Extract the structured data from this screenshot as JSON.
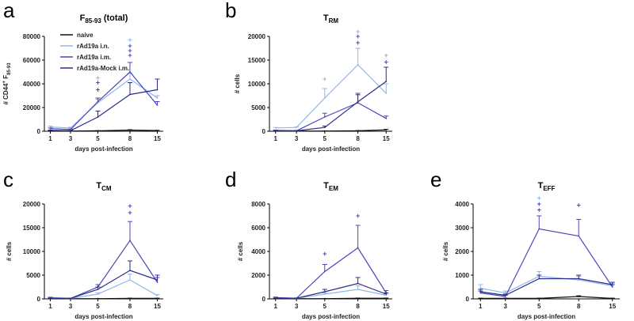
{
  "colors": {
    "naive": "#111111",
    "rAd19a i.n.": "#8fb8e6",
    "rAd19a i.m.": "#4c46b8",
    "rAd19a-Mock i.m.": "#2a2a8c"
  },
  "legend": [
    "naive",
    "rAd19a i.n.",
    "rAd19a i.m.",
    "rAd19a-Mock i.m."
  ],
  "chart_data": [
    {
      "type": "line",
      "panel": "a",
      "title": "F",
      "title_sub": "85-93",
      "title_suffix": " (total)",
      "xlabel": "days post-infection",
      "ylabel_parts": [
        "# CD44",
        "+",
        " F",
        "85-93"
      ],
      "categories": [
        "1",
        "3",
        "5",
        "8",
        "15"
      ],
      "ylim": [
        0,
        80000
      ],
      "yticks": [
        0,
        20000,
        40000,
        60000,
        80000
      ],
      "yticklabels": [
        "0",
        "20000",
        "40000",
        "60000",
        "80000"
      ],
      "series": [
        {
          "name": "naive",
          "values": [
            300,
            200,
            400,
            1000,
            600
          ],
          "err": [
            100,
            100,
            100,
            300,
            200
          ]
        },
        {
          "name": "rAd19a i.n.",
          "values": [
            3500,
            2800,
            24000,
            44000,
            28000
          ],
          "err": [
            800,
            600,
            3000,
            5000,
            2000
          ]
        },
        {
          "name": "rAd19a i.m.",
          "values": [
            2200,
            1500,
            25000,
            50000,
            22000
          ],
          "err": [
            500,
            400,
            3000,
            8000,
            3000
          ]
        },
        {
          "name": "rAd19a-Mock i.m.",
          "values": [
            800,
            500,
            12000,
            31000,
            35000
          ],
          "err": [
            200,
            200,
            5000,
            10000,
            9000
          ]
        }
      ],
      "annotations": [
        {
          "x": "5",
          "series": "rAd19a i.n.",
          "text": "+",
          "y": 45000
        },
        {
          "x": "5",
          "series": "rAd19a i.m.",
          "text": "+",
          "y": 41000
        },
        {
          "x": "5",
          "series": "rAd19a i.m.",
          "text": "+",
          "y": 35000
        },
        {
          "x": "8",
          "series": "rAd19a i.n.",
          "text": "+",
          "y": 77000
        },
        {
          "x": "8",
          "series": "rAd19a i.m.",
          "text": "+",
          "y": 72000
        },
        {
          "x": "8",
          "series": "rAd19a i.m.",
          "text": "+",
          "y": 68000
        },
        {
          "x": "8",
          "series": "rAd19a i.m.",
          "text": "+",
          "y": 64000
        }
      ]
    },
    {
      "type": "line",
      "panel": "b",
      "title": "T",
      "title_sub": "RM",
      "title_suffix": "",
      "xlabel": "days post-infection",
      "ylabel_parts": [
        "# cells",
        "",
        "",
        ""
      ],
      "categories": [
        "1",
        "3",
        "5",
        "8",
        "15"
      ],
      "ylim": [
        0,
        20000
      ],
      "yticks": [
        0,
        5000,
        10000,
        15000,
        20000
      ],
      "yticklabels": [
        "0",
        "5000",
        "10000",
        "15000",
        "20000"
      ],
      "series": [
        {
          "name": "naive",
          "values": [
            50,
            50,
            50,
            100,
            300
          ],
          "err": [
            20,
            20,
            20,
            50,
            100
          ]
        },
        {
          "name": "rAd19a i.n.",
          "values": [
            700,
            800,
            7000,
            14000,
            8000
          ],
          "err": [
            100,
            100,
            2000,
            3500,
            2000
          ]
        },
        {
          "name": "rAd19a i.m.",
          "values": [
            200,
            100,
            3000,
            6000,
            2700
          ],
          "err": [
            50,
            50,
            800,
            2000,
            500
          ]
        },
        {
          "name": "rAd19a-Mock i.m.",
          "values": [
            100,
            100,
            800,
            6200,
            10500
          ],
          "err": [
            50,
            50,
            300,
            1500,
            3000
          ]
        }
      ],
      "annotations": [
        {
          "x": "5",
          "series": "rAd19a i.n.",
          "text": "+",
          "y": 11000
        },
        {
          "x": "8",
          "series": "rAd19a i.n.",
          "text": "+",
          "y": 21000
        },
        {
          "x": "8",
          "series": "rAd19a i.m.",
          "text": "+",
          "y": 20000
        },
        {
          "x": "8",
          "series": "rAd19a i.m.",
          "text": "+",
          "y": 18700
        },
        {
          "x": "15",
          "series": "rAd19a i.n.",
          "text": "+",
          "y": 16000
        },
        {
          "x": "15",
          "series": "rAd19a i.m.",
          "text": "+",
          "y": 14600
        }
      ]
    },
    {
      "type": "line",
      "panel": "c",
      "title": "T",
      "title_sub": "CM",
      "title_suffix": "",
      "xlabel": "days post-infection",
      "ylabel_parts": [
        "# cells",
        "",
        "",
        ""
      ],
      "categories": [
        "1",
        "3",
        "5",
        "8",
        "15"
      ],
      "ylim": [
        0,
        20000
      ],
      "yticks": [
        0,
        5000,
        10000,
        15000,
        20000
      ],
      "yticklabels": [
        "0",
        "5000",
        "10000",
        "15000",
        "20000"
      ],
      "series": [
        {
          "name": "naive",
          "values": [
            50,
            50,
            50,
            100,
            100
          ],
          "err": [
            20,
            20,
            20,
            50,
            50
          ]
        },
        {
          "name": "rAd19a i.n.",
          "values": [
            300,
            100,
            1000,
            4000,
            700
          ],
          "err": [
            100,
            50,
            300,
            1200,
            200
          ]
        },
        {
          "name": "rAd19a i.m.",
          "values": [
            200,
            100,
            2500,
            12300,
            3500
          ],
          "err": [
            100,
            50,
            500,
            4000,
            1000
          ]
        },
        {
          "name": "rAd19a-Mock i.m.",
          "values": [
            100,
            100,
            2000,
            6000,
            4000
          ],
          "err": [
            50,
            50,
            500,
            2000,
            1000
          ]
        }
      ],
      "annotations": [
        {
          "x": "8",
          "series": "rAd19a i.m.",
          "text": "+",
          "y": 19600
        },
        {
          "x": "8",
          "series": "rAd19a i.m.",
          "text": "+",
          "y": 18200
        }
      ]
    },
    {
      "type": "line",
      "panel": "d",
      "title": "T",
      "title_sub": "EM",
      "title_suffix": "",
      "xlabel": "days post-infection",
      "ylabel_parts": [
        "# cells",
        "",
        "",
        ""
      ],
      "categories": [
        "1",
        "3",
        "5",
        "8",
        "15"
      ],
      "ylim": [
        0,
        8000
      ],
      "yticks": [
        0,
        2000,
        4000,
        6000,
        8000
      ],
      "yticklabels": [
        "0",
        "2000",
        "4000",
        "6000",
        "8000"
      ],
      "series": [
        {
          "name": "naive",
          "values": [
            20,
            20,
            20,
            50,
            50
          ],
          "err": [
            10,
            10,
            10,
            20,
            20
          ]
        },
        {
          "name": "rAd19a i.n.",
          "values": [
            100,
            50,
            400,
            800,
            300
          ],
          "err": [
            50,
            20,
            100,
            300,
            100
          ]
        },
        {
          "name": "rAd19a i.m.",
          "values": [
            100,
            50,
            2300,
            4300,
            500
          ],
          "err": [
            50,
            20,
            600,
            1900,
            200
          ]
        },
        {
          "name": "rAd19a-Mock i.m.",
          "values": [
            50,
            50,
            600,
            1300,
            400
          ],
          "err": [
            20,
            20,
            200,
            500,
            100
          ]
        }
      ],
      "annotations": [
        {
          "x": "5",
          "series": "rAd19a i.m.",
          "text": "+",
          "y": 3800
        },
        {
          "x": "8",
          "series": "rAd19a i.m.",
          "text": "+",
          "y": 7000
        }
      ]
    },
    {
      "type": "line",
      "panel": "e",
      "title": "T",
      "title_sub": "EFF",
      "title_suffix": "",
      "xlabel": "days post-infection",
      "ylabel_parts": [
        "# cells",
        "",
        "",
        ""
      ],
      "categories": [
        "1",
        "3",
        "5",
        "8",
        "15"
      ],
      "ylim": [
        0,
        4000
      ],
      "yticks": [
        0,
        1000,
        2000,
        3000,
        4000
      ],
      "yticklabels": [
        "0",
        "1000",
        "2000",
        "3000",
        "4000"
      ],
      "series": [
        {
          "name": "naive",
          "values": [
            20,
            20,
            20,
            100,
            20
          ],
          "err": [
            10,
            10,
            10,
            30,
            10
          ]
        },
        {
          "name": "rAd19a i.n.",
          "values": [
            450,
            250,
            950,
            800,
            550
          ],
          "err": [
            150,
            80,
            200,
            150,
            100
          ]
        },
        {
          "name": "rAd19a i.m.",
          "values": [
            250,
            100,
            2950,
            2650,
            500
          ],
          "err": [
            80,
            50,
            550,
            700,
            100
          ]
        },
        {
          "name": "rAd19a-Mock i.m.",
          "values": [
            300,
            150,
            850,
            850,
            600
          ],
          "err": [
            100,
            50,
            150,
            150,
            100
          ]
        }
      ],
      "annotations": [
        {
          "x": "5",
          "series": "rAd19a i.n.",
          "text": "+",
          "y": 4250
        },
        {
          "x": "5",
          "series": "rAd19a i.m.",
          "text": "+",
          "y": 4000
        },
        {
          "x": "5",
          "series": "rAd19a i.m.",
          "text": "+",
          "y": 3750
        },
        {
          "x": "8",
          "series": "rAd19a i.m.",
          "text": "+",
          "y": 3950
        }
      ]
    }
  ]
}
